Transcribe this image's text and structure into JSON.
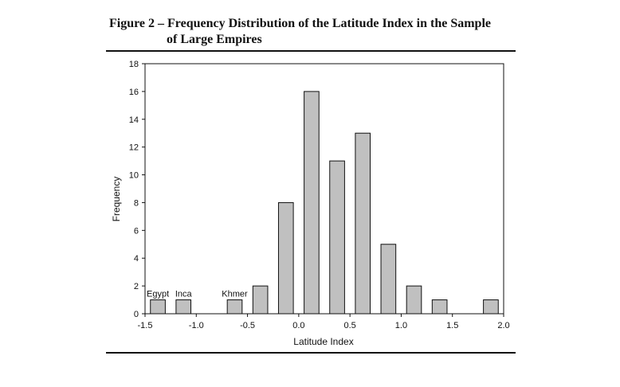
{
  "figure": {
    "title_line1": "Figure 2 – Frequency Distribution of the Latitude Index in the Sample",
    "title_line2": "of Large Empires"
  },
  "chart_data": {
    "type": "bar",
    "xlabel": "Latitude Index",
    "ylabel": "Frequency",
    "xlim": [
      -1.5,
      2.0
    ],
    "ylim": [
      0,
      18
    ],
    "xticks": [
      "-1.5",
      "-1.0",
      "-0.5",
      "0.0",
      "0.5",
      "1.0",
      "1.5",
      "2.0"
    ],
    "yticks": [
      "0",
      "2",
      "4",
      "6",
      "8",
      "10",
      "12",
      "14",
      "16",
      "18"
    ],
    "bars": [
      {
        "x": -1.375,
        "value": 1
      },
      {
        "x": -1.125,
        "value": 1
      },
      {
        "x": -0.625,
        "value": 1
      },
      {
        "x": -0.375,
        "value": 2
      },
      {
        "x": -0.125,
        "value": 8
      },
      {
        "x": 0.125,
        "value": 16
      },
      {
        "x": 0.375,
        "value": 11
      },
      {
        "x": 0.625,
        "value": 13
      },
      {
        "x": 0.875,
        "value": 5
      },
      {
        "x": 1.125,
        "value": 2
      },
      {
        "x": 1.375,
        "value": 1
      },
      {
        "x": 1.875,
        "value": 1
      }
    ],
    "annotations": [
      {
        "text": "Egypt",
        "x": -1.375,
        "y": 1
      },
      {
        "text": "Inca",
        "x": -1.125,
        "y": 1
      },
      {
        "text": "Khmer",
        "x": -0.625,
        "y": 1
      }
    ],
    "grid": false,
    "colors": {
      "bar_fill": "#c0c0c0",
      "bar_stroke": "#111111"
    }
  }
}
